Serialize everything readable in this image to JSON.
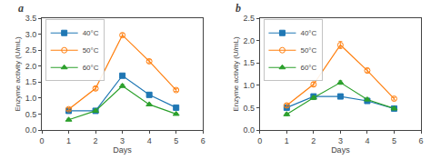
{
  "chart_data": [
    {
      "type": "line",
      "title": "a",
      "x": [
        1,
        2,
        3,
        4,
        5
      ],
      "series": [
        {
          "name": "40°C",
          "values": [
            0.6,
            0.6,
            1.7,
            1.1,
            0.7
          ],
          "errors": [
            0.04,
            0.04,
            0.05,
            0.04,
            0.03
          ],
          "marker": "square"
        },
        {
          "name": "50°C",
          "values": [
            0.65,
            1.3,
            2.97,
            2.15,
            1.25
          ],
          "errors": [
            0.04,
            0.05,
            0.05,
            0.05,
            0.04
          ],
          "marker": "circle-open"
        },
        {
          "name": "60°C",
          "values": [
            0.32,
            0.6,
            1.38,
            0.8,
            0.5
          ],
          "errors": [
            0.03,
            0.03,
            0.05,
            0.03,
            0.03
          ],
          "marker": "triangle-up"
        }
      ],
      "xlabel": "Days",
      "ylabel": "Enzyme activity (U/mL)",
      "xlim": [
        0,
        6
      ],
      "xticks": [
        0,
        1,
        2,
        3,
        4,
        5,
        6
      ],
      "ylim": [
        0,
        3.5
      ],
      "yticks": [
        {
          "value": 0,
          "label": "0.0"
        },
        0.5,
        {
          "value": 1,
          "label": "1.0"
        },
        1.5,
        {
          "value": 2,
          "label": "2.0"
        },
        2.5,
        {
          "value": 3,
          "label": "3.0"
        },
        3.5
      ],
      "legend": "upper left",
      "grid": false
    },
    {
      "type": "line",
      "title": "b",
      "x": [
        1,
        2,
        3,
        4,
        5
      ],
      "series": [
        {
          "name": "40°C",
          "values": [
            0.5,
            0.75,
            0.75,
            0.65,
            0.48
          ],
          "errors": [
            0.03,
            0.04,
            0.04,
            0.03,
            0.03
          ],
          "marker": "square"
        },
        {
          "name": "50°C",
          "values": [
            0.55,
            1.02,
            1.9,
            1.33,
            0.7
          ],
          "errors": [
            0.04,
            0.05,
            0.08,
            0.05,
            0.03
          ],
          "marker": "circle-open"
        },
        {
          "name": "60°C",
          "values": [
            0.35,
            0.72,
            1.06,
            0.68,
            0.48
          ],
          "errors": [
            0.03,
            0.04,
            0.04,
            0.03,
            0.03
          ],
          "marker": "triangle-up"
        }
      ],
      "xlabel": "Days",
      "ylabel": "Enzyme activity (U/mL)",
      "xlim": [
        0,
        6
      ],
      "xticks": [
        0,
        1,
        2,
        3,
        4,
        5,
        6
      ],
      "ylim": [
        0,
        2.5
      ],
      "yticks": [
        {
          "value": 0,
          "label": "0.0"
        },
        0.5,
        {
          "value": 1,
          "label": "1.0"
        },
        1.5,
        {
          "value": 2,
          "label": "2.0"
        },
        2.5
      ],
      "legend": "upper left",
      "grid": false
    }
  ]
}
